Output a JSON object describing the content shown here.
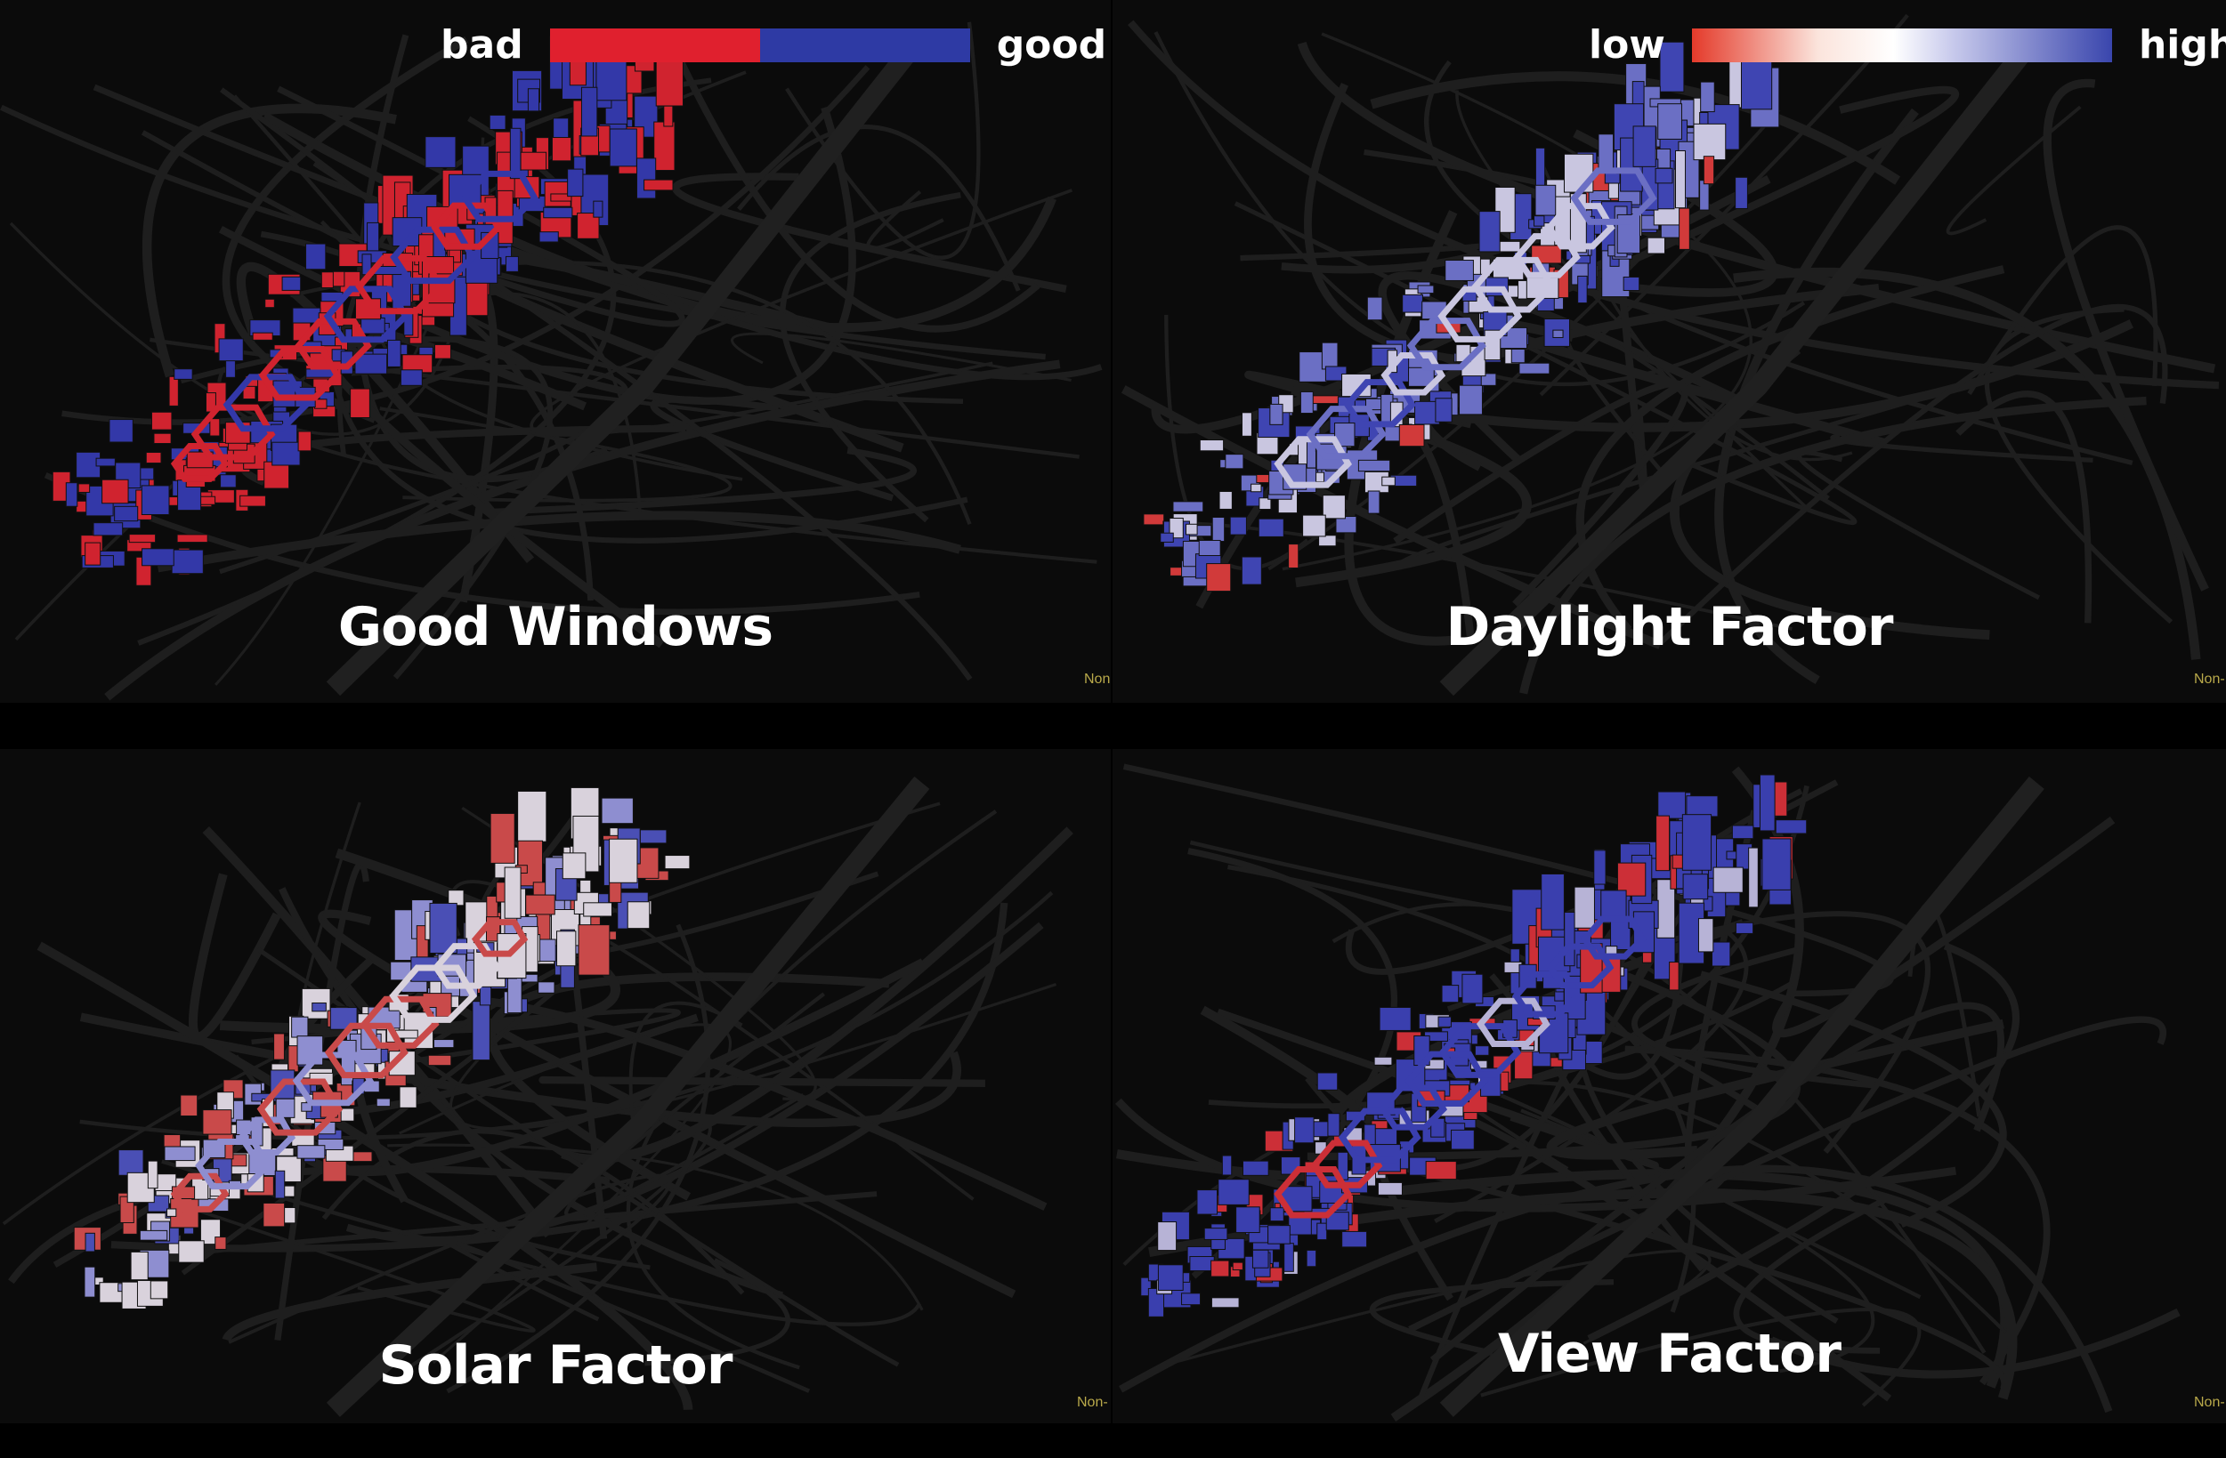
{
  "legends": {
    "good_windows": {
      "low_label": "bad",
      "high_label": "good",
      "colors": [
        "#e0202e",
        "#2e3aa4"
      ]
    },
    "factor_scale": {
      "low_label": "low",
      "high_label": "high",
      "colors": [
        "#e43a2a",
        "#ffffff",
        "#3a46ad"
      ]
    }
  },
  "panels": [
    {
      "title": "Good Windows",
      "corner": "Non",
      "scheme": "binary"
    },
    {
      "title": "Daylight Factor",
      "corner": "Non-",
      "scheme": "daylight"
    },
    {
      "title": "Solar Factor",
      "corner": "Non-",
      "scheme": "solar"
    },
    {
      "title": "View Factor",
      "corner": "Non-",
      "scheme": "view"
    }
  ]
}
